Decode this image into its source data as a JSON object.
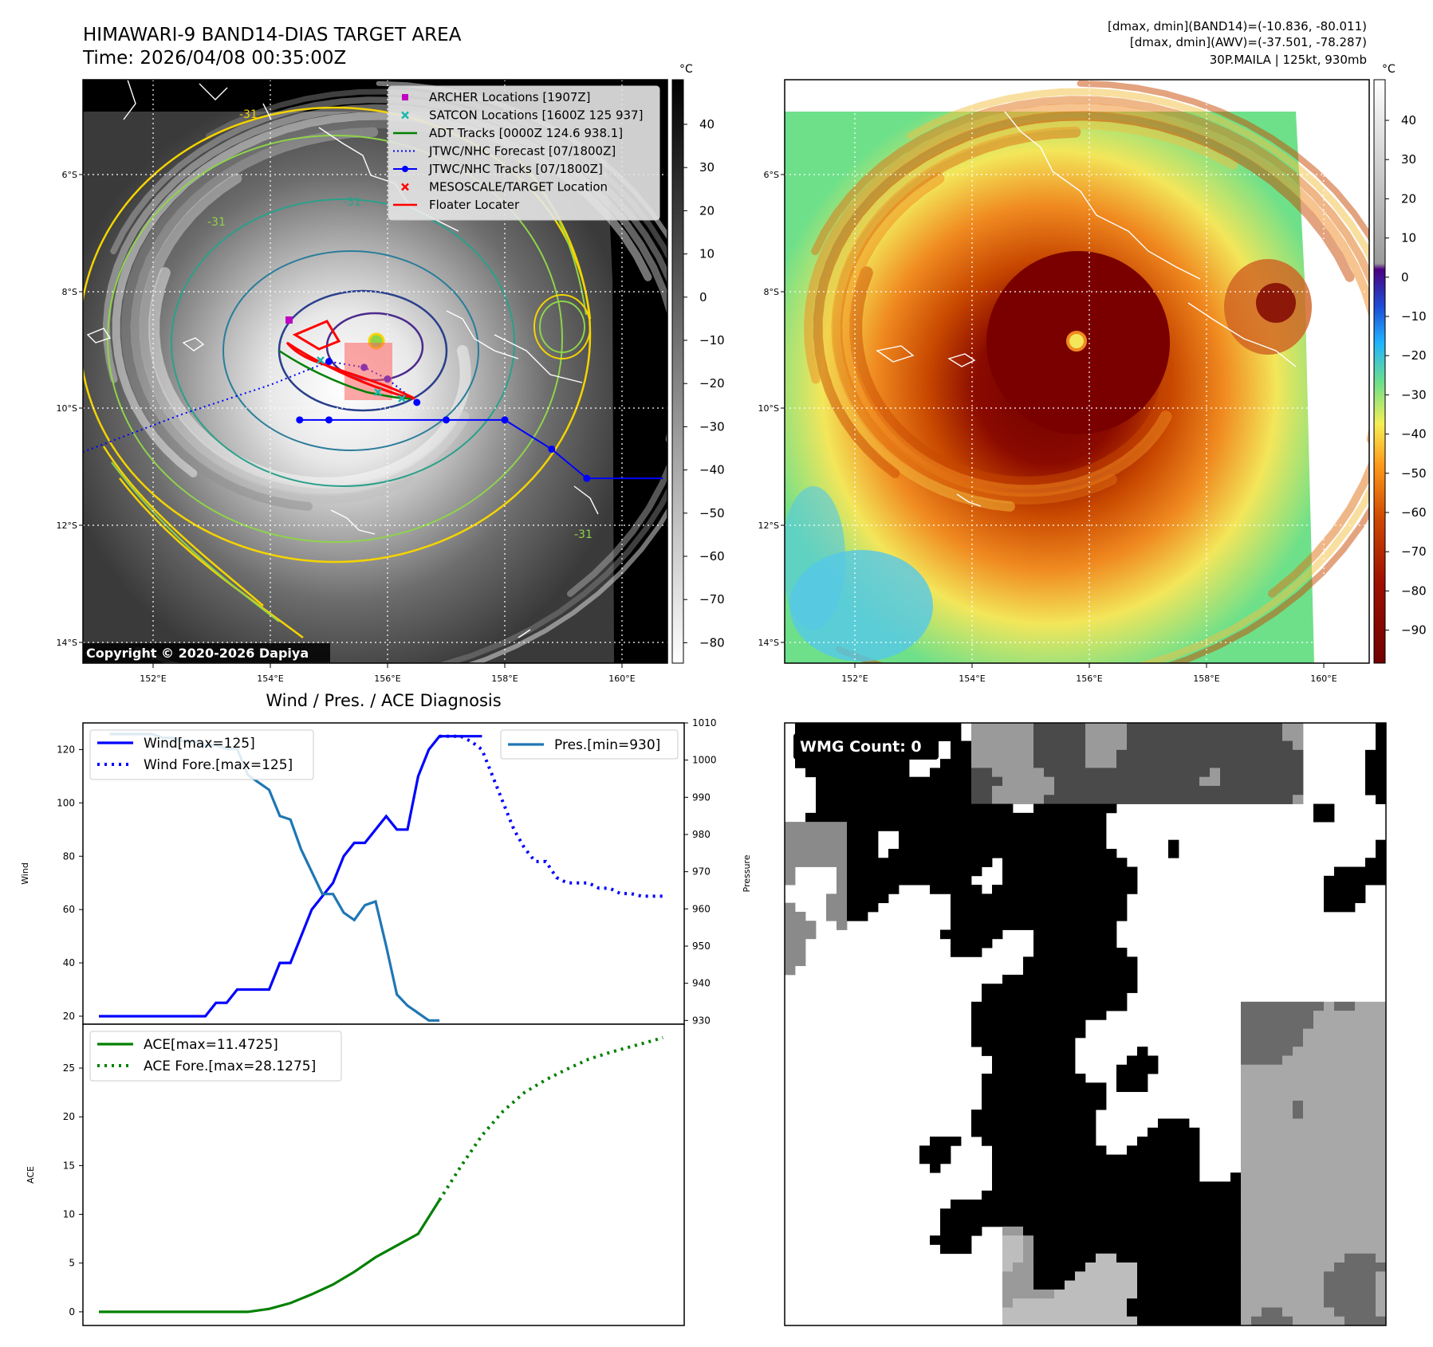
{
  "header": {
    "title_line1": "HIMAWARI-9 BAND14-DIAS TARGET AREA",
    "title_line2": "Time: 2026/04/08 00:35:00Z",
    "stats_line1": "[dmax, dmin](BAND14)=(-10.836, -80.011)",
    "stats_line2": "[dmax, dmin](AWV)=(-37.501, -78.287)",
    "stats_line3": "30P.MAILA | 125kt, 930mb"
  },
  "maps": {
    "lat_labels": [
      "6°S",
      "8°S",
      "10°S",
      "12°S",
      "14°S"
    ],
    "lon_labels": [
      "152°E",
      "154°E",
      "156°E",
      "158°E",
      "160°E"
    ],
    "copyright": "Copyright © 2020-2026 Dapiya",
    "legend": [
      {
        "label": "ARCHER Locations [1907Z]",
        "color": "#c000c0",
        "symbol": "square"
      },
      {
        "label": "SATCON Locations [1600Z 125 937]",
        "color": "#17b8b0",
        "symbol": "x"
      },
      {
        "label": "ADT Tracks [0000Z 124.6 938.1]",
        "color": "#008000",
        "symbol": "line"
      },
      {
        "label": "JTWC/NHC Forecast [07/1800Z]",
        "color": "#0000ff",
        "symbol": "dotted"
      },
      {
        "label": "JTWC/NHC Tracks [07/1800Z]",
        "color": "#0000ff",
        "symbol": "line-dot"
      },
      {
        "label": "MESOSCALE/TARGET Location",
        "color": "#ff0000",
        "symbol": "x"
      },
      {
        "label": "Floater Locater",
        "color": "#ff0000",
        "symbol": "line"
      }
    ],
    "contour_label": "-31",
    "colorbar_unit": "°C",
    "colorbar1_ticks": [
      "40",
      "30",
      "20",
      "10",
      "0",
      "−10",
      "−20",
      "−30",
      "−40",
      "−50",
      "−60",
      "−70",
      "−80"
    ],
    "colorbar2_ticks": [
      "40",
      "30",
      "20",
      "10",
      "0",
      "−10",
      "−20",
      "−30",
      "−40",
      "−50",
      "−60",
      "−70",
      "−80",
      "−90"
    ],
    "jtwc_track": [
      [
        154.5,
        -10.2
      ],
      [
        155.0,
        -10.2
      ],
      [
        157.0,
        -10.2
      ],
      [
        158.0,
        -10.2
      ],
      [
        158.8,
        -10.7
      ],
      [
        159.4,
        -11.2
      ],
      [
        160.7,
        -11.2
      ]
    ],
    "jtwc_forecast": [
      [
        150.8,
        -10.75
      ],
      [
        152.5,
        -10.1
      ],
      [
        154.0,
        -9.6
      ],
      [
        155.0,
        -9.2
      ],
      [
        155.6,
        -9.3
      ],
      [
        156.0,
        -9.5
      ],
      [
        156.5,
        -9.9
      ]
    ],
    "colors": {
      "eye_dark": "#800000",
      "background_green": "#6ee08a"
    }
  },
  "wmg": {
    "label": "WMG Count: 0"
  },
  "chart_data": [
    {
      "type": "line",
      "title": "Wind / Pres. / ACE Diagnosis",
      "ylabel": "Wind",
      "y2label": "Pressure",
      "ylim": [
        17,
        130
      ],
      "y2lim": [
        929,
        1010
      ],
      "yticks": [
        "20",
        "40",
        "60",
        "80",
        "100",
        "120"
      ],
      "y2ticks": [
        "930",
        "940",
        "950",
        "960",
        "970",
        "980",
        "990",
        "1000",
        "1010"
      ],
      "series": [
        {
          "name": "Wind[max=125]",
          "style": "solid",
          "color": "#0000ff",
          "axis": "left",
          "x": [
            0,
            1,
            2,
            3,
            4,
            5,
            6,
            7,
            8,
            9,
            10,
            11,
            12,
            13,
            14,
            15,
            16,
            17,
            18,
            19,
            20,
            21,
            22,
            23,
            24,
            25,
            26,
            27,
            28,
            29,
            30,
            31,
            32,
            33,
            34,
            35,
            36
          ],
          "values": [
            20,
            20,
            20,
            20,
            20,
            20,
            20,
            20,
            20,
            20,
            20,
            25,
            25,
            30,
            30,
            30,
            30,
            40,
            40,
            50,
            60,
            65,
            70,
            80,
            85,
            85,
            90,
            95,
            90,
            90,
            110,
            120,
            125,
            125,
            125,
            125,
            125
          ]
        },
        {
          "name": "Wind Fore.[max=125]",
          "style": "dotted",
          "color": "#0000ff",
          "axis": "left",
          "x": [
            32,
            33,
            34,
            35,
            36,
            37,
            38,
            39,
            40,
            41,
            42,
            43,
            44,
            45,
            46,
            47,
            48,
            49,
            50,
            51,
            52,
            53
          ],
          "values": [
            125,
            125,
            125,
            123,
            120,
            110,
            100,
            90,
            83,
            78,
            78,
            72,
            70,
            70,
            70,
            68,
            68,
            66,
            66,
            65,
            65,
            65
          ]
        },
        {
          "name": "Pres.[min=930]",
          "style": "solid",
          "color": "#1f77b4",
          "axis": "right",
          "x": [
            1,
            2,
            3,
            4,
            5,
            6,
            7,
            8,
            9,
            10,
            11,
            12,
            13,
            14,
            15,
            16,
            17,
            18,
            19,
            20,
            21,
            22,
            23,
            24,
            25,
            26,
            27,
            28,
            29,
            30,
            31,
            32
          ],
          "values": [
            1007,
            1007,
            1007,
            1007,
            1007,
            1006,
            1006,
            1005,
            1005,
            1004,
            1004,
            1003,
            1003,
            996,
            994,
            992,
            985,
            984,
            976,
            970,
            964,
            964,
            959,
            957,
            961,
            962,
            950,
            937,
            934,
            932,
            930,
            930
          ]
        }
      ]
    },
    {
      "type": "line",
      "ylabel": "ACE",
      "ylim": [
        -1.4,
        29.5
      ],
      "yticks": [
        "0",
        "5",
        "10",
        "15",
        "20",
        "25"
      ],
      "series": [
        {
          "name": "ACE[max=11.4725]",
          "style": "solid",
          "color": "#008000",
          "x": [
            0,
            2,
            4,
            6,
            8,
            10,
            12,
            14,
            16,
            18,
            20,
            22,
            24,
            26,
            28,
            30,
            32
          ],
          "values": [
            0,
            0,
            0,
            0,
            0,
            0,
            0,
            0,
            0.3,
            0.9,
            1.8,
            2.8,
            4.1,
            5.6,
            6.8,
            8.0,
            11.47
          ]
        },
        {
          "name": "ACE Fore.[max=28.1275]",
          "style": "dotted",
          "color": "#008000",
          "x": [
            32,
            34,
            36,
            38,
            40,
            42,
            44,
            46,
            48,
            50,
            52,
            53
          ],
          "values": [
            11.47,
            14.9,
            18.1,
            20.6,
            22.5,
            23.8,
            24.9,
            25.9,
            26.6,
            27.2,
            27.8,
            28.13
          ]
        }
      ]
    }
  ]
}
